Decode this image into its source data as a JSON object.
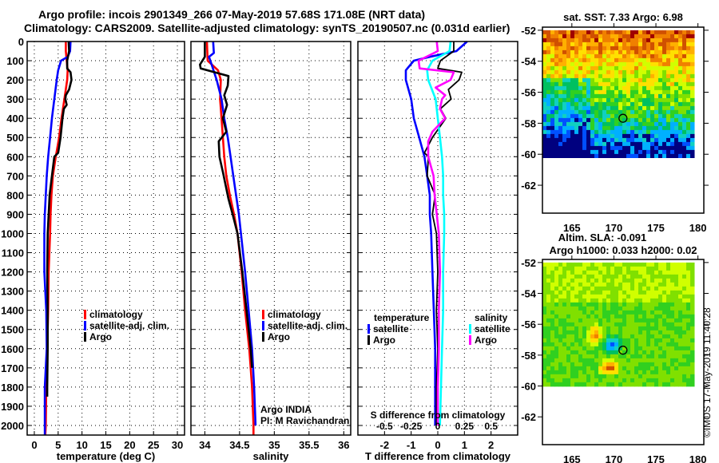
{
  "header": {
    "line1": "Argo profile: incois 2901349_266 07-May-2019 57.68S 171.08E (NRT data)",
    "line2": "Climatology: CARS2009. Satellite-adjusted climatology: synTS_20190507.nc (0.031d earlier)"
  },
  "colors": {
    "climatology": "#ff0000",
    "satellite": "#0000ff",
    "argo": "#000000",
    "salinity_satellite": "#00ffff",
    "salinity_argo": "#ff00ff"
  },
  "chart_data": [
    {
      "type": "line",
      "id": "temperature",
      "title": "",
      "xlabel": "temperature (deg C)",
      "ylabel": "",
      "xlim": [
        -1.5,
        31.5
      ],
      "ylim": [
        2050,
        0
      ],
      "grid": true,
      "xticks": [
        0,
        5,
        10,
        15,
        20,
        25,
        30
      ],
      "yticks": [
        0,
        100,
        200,
        300,
        400,
        500,
        600,
        700,
        800,
        900,
        1000,
        1100,
        1200,
        1300,
        1400,
        1500,
        1600,
        1700,
        1800,
        1900,
        2000
      ],
      "legend": {
        "position": "center-right",
        "entries": [
          "climatology",
          "satellite-adj. clim.",
          "Argo"
        ]
      },
      "series": [
        {
          "name": "climatology",
          "color": "#ff0000",
          "depth": [
            0,
            50,
            100,
            150,
            200,
            300,
            400,
            500,
            600,
            700,
            800,
            900,
            1000,
            1200,
            1400,
            1600,
            1800,
            2000,
            2050
          ],
          "values": [
            6.6,
            6.6,
            6.8,
            7.0,
            6.9,
            6.3,
            5.7,
            5.2,
            4.5,
            3.9,
            3.6,
            3.4,
            3.3,
            3.0,
            2.9,
            2.7,
            2.5,
            2.4,
            2.3
          ]
        },
        {
          "name": "satellite-adj. clim.",
          "color": "#0000ff",
          "depth": [
            0,
            50,
            80,
            100,
            150,
            200,
            300,
            400,
            500,
            600,
            700,
            800,
            900,
            1000,
            1200,
            1400,
            1600,
            1800,
            2000,
            2050
          ],
          "values": [
            7.6,
            7.5,
            7.0,
            5.6,
            5.0,
            4.7,
            4.2,
            3.7,
            3.3,
            2.9,
            2.6,
            2.4,
            2.2,
            2.1,
            2.1,
            2.5,
            2.6,
            2.2,
            2.2,
            2.2
          ]
        },
        {
          "name": "Argo",
          "color": "#000000",
          "depth": [
            0,
            50,
            100,
            140,
            160,
            200,
            250,
            280,
            300,
            330,
            350,
            400,
            500,
            580,
            600,
            700,
            800,
            900,
            1000,
            1200,
            1400,
            1600,
            1800,
            1850
          ],
          "values": [
            7.2,
            7.3,
            6.9,
            6.9,
            7.6,
            7.8,
            7.3,
            6.6,
            6.5,
            6.8,
            6.2,
            5.9,
            5.5,
            5.0,
            4.2,
            3.7,
            3.2,
            3.0,
            2.8,
            2.7,
            2.8,
            2.8,
            2.7,
            2.7
          ]
        }
      ]
    },
    {
      "type": "line",
      "id": "salinity",
      "title": "",
      "xlabel": "salinity",
      "ylabel": "",
      "xlim": [
        33.8,
        36.1
      ],
      "ylim": [
        2050,
        0
      ],
      "grid": true,
      "xticks": [
        34,
        34.5,
        35,
        35.5,
        36
      ],
      "legend": {
        "position": "center-right",
        "entries": [
          "climatology",
          "satellite-adj. clim.",
          "Argo"
        ]
      },
      "annotation": [
        "Argo INDIA",
        "PI: M Ravichandran"
      ],
      "series": [
        {
          "name": "climatology",
          "color": "#ff0000",
          "depth": [
            0,
            100,
            150,
            200,
            300,
            400,
            500,
            600,
            700,
            800,
            900,
            1000,
            1200,
            1400,
            1600,
            1800,
            2000,
            2050
          ],
          "values": [
            34.03,
            34.04,
            34.19,
            34.23,
            34.22,
            34.24,
            34.26,
            34.28,
            34.31,
            34.36,
            34.42,
            34.47,
            34.53,
            34.58,
            34.64,
            34.68,
            34.7,
            34.7
          ]
        },
        {
          "name": "satellite-adj. clim.",
          "color": "#0000ff",
          "depth": [
            0,
            60,
            80,
            100,
            200,
            300,
            400,
            500,
            600,
            700,
            800,
            900,
            1000,
            1200,
            1400,
            1600,
            1800,
            2000
          ],
          "values": [
            34.12,
            34.13,
            34.06,
            34.08,
            34.17,
            34.24,
            34.28,
            34.33,
            34.37,
            34.41,
            34.45,
            34.49,
            34.52,
            34.58,
            34.63,
            34.68,
            34.71,
            34.73
          ]
        },
        {
          "name": "Argo",
          "color": "#000000",
          "depth": [
            0,
            80,
            120,
            140,
            180,
            230,
            280,
            330,
            400,
            470,
            520,
            600,
            680,
            750,
            820,
            900,
            1000,
            1200,
            1400,
            1600,
            1700
          ],
          "values": [
            34.0,
            34.0,
            33.93,
            33.94,
            34.34,
            34.33,
            34.28,
            34.32,
            34.26,
            34.31,
            34.2,
            34.21,
            34.26,
            34.3,
            34.34,
            34.4,
            34.47,
            34.54,
            34.6,
            34.66,
            34.68
          ]
        }
      ]
    },
    {
      "type": "line",
      "id": "difference",
      "title": "",
      "xlabel": "T difference from climatology",
      "xlabel_secondary": "S difference from climatology",
      "ylabel": "",
      "xlim": [
        -3,
        3
      ],
      "xlim_secondary": [
        -0.75,
        0.75
      ],
      "ylim": [
        2050,
        0
      ],
      "grid": true,
      "xticks": [
        -2,
        -1,
        0,
        1,
        2
      ],
      "xticks_secondary": [
        "-0.5",
        "-0.25",
        "0",
        "0.25",
        "0.5"
      ],
      "legend": {
        "position": "lower",
        "temperature_title": "temperature",
        "temperature_entries": [
          "satellite",
          "Argo"
        ],
        "salinity_title": "salinity",
        "salinity_entries": [
          "satellite",
          "Argo"
        ]
      },
      "series": [
        {
          "name": "temperature satellite",
          "color": "#0000ff",
          "axis": "T",
          "depth": [
            0,
            50,
            80,
            100,
            150,
            200,
            300,
            400,
            500,
            600,
            700,
            800,
            900,
            1000,
            1200,
            1400,
            1600,
            1800,
            2000
          ],
          "values": [
            1.1,
            0.7,
            -0.3,
            -0.9,
            -1.2,
            -1.2,
            -1.0,
            -0.9,
            -0.7,
            -0.5,
            -0.4,
            -0.3,
            -0.3,
            -0.25,
            -0.2,
            -0.15,
            -0.1,
            -0.1,
            -0.1
          ]
        },
        {
          "name": "temperature Argo",
          "color": "#000000",
          "axis": "T",
          "depth": [
            0,
            50,
            100,
            140,
            160,
            200,
            250,
            300,
            350,
            400,
            500,
            580,
            600,
            700,
            800,
            900,
            1000,
            1200,
            1400,
            1600,
            1800,
            2000
          ],
          "values": [
            0.6,
            0.6,
            0.1,
            0.0,
            0.9,
            0.8,
            0.4,
            0.5,
            0.1,
            0.3,
            -0.2,
            -0.5,
            -0.35,
            -0.4,
            -0.1,
            -0.2,
            -0.05,
            0.0,
            -0.05,
            0.0,
            -0.05,
            -0.05
          ]
        },
        {
          "name": "salinity satellite",
          "color": "#00ffff",
          "axis": "S",
          "depth": [
            0,
            50,
            100,
            150,
            200,
            300,
            400,
            500,
            600,
            700,
            800,
            900,
            1000,
            1200,
            1400,
            1600,
            1800,
            2000
          ],
          "values": [
            0.12,
            0.11,
            -0.05,
            -0.1,
            -0.09,
            -0.02,
            0.0,
            0.02,
            0.04,
            0.05,
            0.05,
            0.06,
            0.06,
            0.05,
            0.05,
            0.04,
            0.03,
            0.02
          ]
        },
        {
          "name": "salinity Argo",
          "color": "#ff00ff",
          "axis": "S",
          "depth": [
            0,
            50,
            100,
            140,
            160,
            200,
            240,
            280,
            300,
            350,
            400,
            470,
            520,
            600,
            700,
            800,
            900,
            1000,
            1200,
            1400,
            1600,
            1800,
            2000
          ],
          "values": [
            -0.01,
            0.0,
            -0.18,
            -0.17,
            0.15,
            0.12,
            -0.02,
            0.07,
            0.04,
            0.02,
            0.07,
            -0.05,
            -0.09,
            -0.09,
            -0.04,
            -0.03,
            -0.01,
            0.01,
            0.02,
            0.01,
            0.01,
            0.0,
            0.0
          ]
        }
      ]
    },
    {
      "type": "heatmap",
      "id": "sst-map",
      "title": "sat. SST: 7.33 Argo: 6.98",
      "xlim": [
        161.5,
        180.7
      ],
      "ylim": [
        -63.8,
        -51.8
      ],
      "xticks": [
        165,
        170,
        175,
        180
      ],
      "yticks": [
        -52,
        -54,
        -56,
        -58,
        -60,
        -62
      ],
      "data_extent_lat": [
        -52,
        -60
      ],
      "float_position": {
        "lon": 171.08,
        "lat": -57.68
      },
      "description": "warm (orange) in north ~-52 to -55, yellow/green mid, green/blue in south-west"
    },
    {
      "type": "heatmap",
      "id": "sla-map",
      "title": "Altim. SLA: -0.091",
      "subtitle": "Argo h1000: 0.033 h2000: 0.02",
      "xlim": [
        161.5,
        180.7
      ],
      "ylim": [
        -63.8,
        -51.8
      ],
      "xticks": [
        165,
        170,
        175,
        180
      ],
      "yticks": [
        -52,
        -54,
        -56,
        -58,
        -60,
        -62
      ],
      "data_extent_lat": [
        -52,
        -60
      ],
      "float_position": {
        "lon": 171.08,
        "lat": -57.68
      },
      "description": "eddy: negative (blue) core near 169.5E 57.2S, positive (red) arcs to west and south"
    }
  ],
  "footer": {
    "stamp": "©IMOS 17-May-2019 11:40:28"
  }
}
